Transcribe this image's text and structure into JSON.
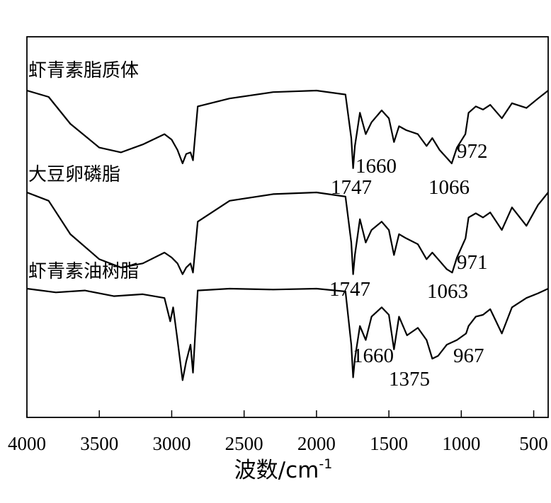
{
  "chart_data": {
    "type": "line",
    "title": "",
    "xlabel": "波数/cm",
    "xlabel_sup": "-1",
    "ylabel": "",
    "xlim": [
      4000,
      400
    ],
    "x_reversed": true,
    "grid": false,
    "x_ticks": [
      4000,
      3500,
      3000,
      2500,
      2000,
      1500,
      1000,
      500
    ],
    "x_tick_labels": [
      "4000",
      "3500",
      "3000",
      "2500",
      "2000",
      "1500",
      "1000",
      "500"
    ],
    "series": [
      {
        "name": "虾青素脂质体",
        "color": "#000000",
        "points": [
          [
            4000,
            0.0
          ],
          [
            3850,
            0.08
          ],
          [
            3700,
            0.42
          ],
          [
            3500,
            0.72
          ],
          [
            3350,
            0.78
          ],
          [
            3200,
            0.68
          ],
          [
            3050,
            0.55
          ],
          [
            3000,
            0.62
          ],
          [
            2960,
            0.75
          ],
          [
            2925,
            0.92
          ],
          [
            2900,
            0.8
          ],
          [
            2870,
            0.78
          ],
          [
            2853,
            0.88
          ],
          [
            2820,
            0.2
          ],
          [
            2600,
            0.1
          ],
          [
            2300,
            0.02
          ],
          [
            2000,
            0.0
          ],
          [
            1800,
            0.05
          ],
          [
            1760,
            0.6
          ],
          [
            1747,
            0.98
          ],
          [
            1735,
            0.7
          ],
          [
            1700,
            0.28
          ],
          [
            1660,
            0.55
          ],
          [
            1620,
            0.4
          ],
          [
            1550,
            0.25
          ],
          [
            1500,
            0.35
          ],
          [
            1465,
            0.65
          ],
          [
            1430,
            0.45
          ],
          [
            1380,
            0.5
          ],
          [
            1300,
            0.55
          ],
          [
            1240,
            0.7
          ],
          [
            1200,
            0.6
          ],
          [
            1150,
            0.75
          ],
          [
            1100,
            0.85
          ],
          [
            1066,
            0.92
          ],
          [
            1030,
            0.72
          ],
          [
            972,
            0.55
          ],
          [
            950,
            0.28
          ],
          [
            900,
            0.2
          ],
          [
            850,
            0.24
          ],
          [
            800,
            0.18
          ],
          [
            720,
            0.35
          ],
          [
            650,
            0.16
          ],
          [
            550,
            0.22
          ],
          [
            470,
            0.1
          ],
          [
            400,
            0.0
          ]
        ]
      },
      {
        "name": "大豆卵磷脂",
        "color": "#000000",
        "points": [
          [
            4000,
            0.0
          ],
          [
            3850,
            0.1
          ],
          [
            3700,
            0.5
          ],
          [
            3500,
            0.8
          ],
          [
            3350,
            0.9
          ],
          [
            3200,
            0.85
          ],
          [
            3050,
            0.72
          ],
          [
            3000,
            0.78
          ],
          [
            2960,
            0.85
          ],
          [
            2925,
            0.98
          ],
          [
            2900,
            0.9
          ],
          [
            2870,
            0.85
          ],
          [
            2853,
            0.96
          ],
          [
            2820,
            0.35
          ],
          [
            2600,
            0.1
          ],
          [
            2300,
            0.02
          ],
          [
            2000,
            0.0
          ],
          [
            1800,
            0.05
          ],
          [
            1760,
            0.6
          ],
          [
            1747,
            0.98
          ],
          [
            1735,
            0.75
          ],
          [
            1700,
            0.32
          ],
          [
            1660,
            0.6
          ],
          [
            1620,
            0.45
          ],
          [
            1550,
            0.35
          ],
          [
            1500,
            0.45
          ],
          [
            1465,
            0.75
          ],
          [
            1430,
            0.5
          ],
          [
            1380,
            0.55
          ],
          [
            1300,
            0.62
          ],
          [
            1240,
            0.8
          ],
          [
            1200,
            0.72
          ],
          [
            1150,
            0.82
          ],
          [
            1100,
            0.92
          ],
          [
            1063,
            0.96
          ],
          [
            1030,
            0.78
          ],
          [
            971,
            0.55
          ],
          [
            950,
            0.3
          ],
          [
            900,
            0.25
          ],
          [
            850,
            0.3
          ],
          [
            800,
            0.24
          ],
          [
            720,
            0.45
          ],
          [
            650,
            0.18
          ],
          [
            550,
            0.4
          ],
          [
            470,
            0.15
          ],
          [
            400,
            0.0
          ]
        ]
      },
      {
        "name": "虾青素油树脂",
        "color": "#000000",
        "points": [
          [
            4000,
            0.0
          ],
          [
            3800,
            0.04
          ],
          [
            3600,
            0.02
          ],
          [
            3400,
            0.08
          ],
          [
            3200,
            0.06
          ],
          [
            3050,
            0.1
          ],
          [
            3010,
            0.35
          ],
          [
            2990,
            0.2
          ],
          [
            2960,
            0.55
          ],
          [
            2925,
            0.98
          ],
          [
            2900,
            0.78
          ],
          [
            2870,
            0.6
          ],
          [
            2853,
            0.9
          ],
          [
            2820,
            0.02
          ],
          [
            2600,
            0.0
          ],
          [
            2300,
            0.01
          ],
          [
            2000,
            0.0
          ],
          [
            1800,
            0.03
          ],
          [
            1760,
            0.6
          ],
          [
            1747,
            0.95
          ],
          [
            1735,
            0.75
          ],
          [
            1700,
            0.4
          ],
          [
            1660,
            0.55
          ],
          [
            1620,
            0.3
          ],
          [
            1550,
            0.2
          ],
          [
            1500,
            0.28
          ],
          [
            1465,
            0.65
          ],
          [
            1430,
            0.3
          ],
          [
            1375,
            0.5
          ],
          [
            1300,
            0.42
          ],
          [
            1240,
            0.55
          ],
          [
            1200,
            0.75
          ],
          [
            1160,
            0.72
          ],
          [
            1100,
            0.6
          ],
          [
            1030,
            0.55
          ],
          [
            967,
            0.48
          ],
          [
            950,
            0.4
          ],
          [
            900,
            0.3
          ],
          [
            850,
            0.28
          ],
          [
            800,
            0.22
          ],
          [
            720,
            0.48
          ],
          [
            650,
            0.2
          ],
          [
            550,
            0.1
          ],
          [
            470,
            0.05
          ],
          [
            400,
            0.0
          ]
        ]
      }
    ],
    "annotations": [
      {
        "series": 0,
        "text": "1660"
      },
      {
        "series": 0,
        "text": "1747"
      },
      {
        "series": 0,
        "text": "1066"
      },
      {
        "series": 0,
        "text": "972"
      },
      {
        "series": 1,
        "text": "1747"
      },
      {
        "series": 1,
        "text": "1063"
      },
      {
        "series": 1,
        "text": "971"
      },
      {
        "series": 2,
        "text": "1660"
      },
      {
        "series": 2,
        "text": "1375"
      },
      {
        "series": 2,
        "text": "967"
      }
    ]
  }
}
